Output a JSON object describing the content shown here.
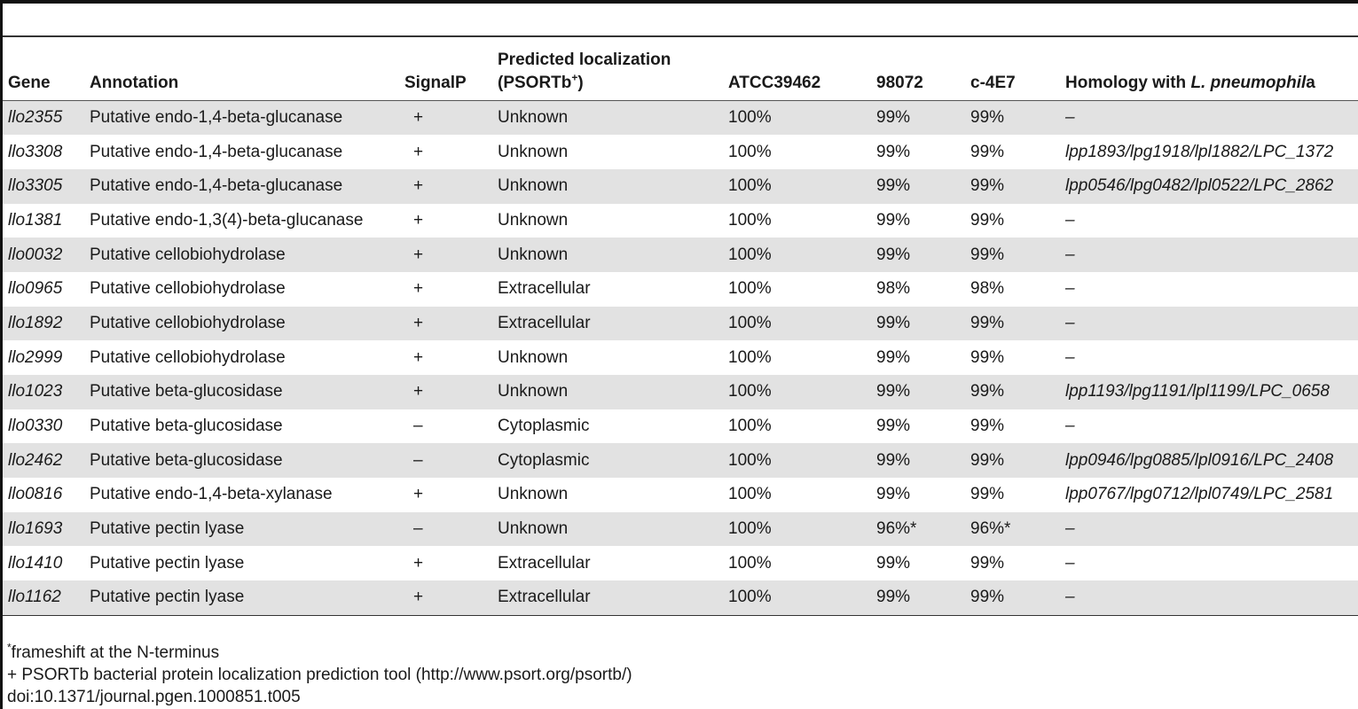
{
  "table": {
    "headers": {
      "gene": "Gene",
      "annotation": "Annotation",
      "signalp": "SignalP",
      "localization_line1": "Predicted localization",
      "localization_line2_pre": "(PSORTb",
      "localization_sup": "+",
      "localization_line2_post": ")",
      "atcc": "ATCC39462",
      "s98072": "98072",
      "c4e7": "c-4E7",
      "homology_pre": "Homology with ",
      "homology_italic": "L. pneumophil",
      "homology_post": "a"
    },
    "rows": [
      {
        "gene": "llo2355",
        "annotation": "Putative endo-1,4-beta-glucanase",
        "signalp": "+",
        "localization": "Unknown",
        "atcc": "100%",
        "s98072": "99%",
        "c4e7": "99%",
        "homology": "–"
      },
      {
        "gene": "llo3308",
        "annotation": "Putative endo-1,4-beta-glucanase",
        "signalp": "+",
        "localization": "Unknown",
        "atcc": "100%",
        "s98072": "99%",
        "c4e7": "99%",
        "homology": "lpp1893/lpg1918/lpl1882/LPC_1372"
      },
      {
        "gene": "llo3305",
        "annotation": "Putative endo-1,4-beta-glucanase",
        "signalp": "+",
        "localization": "Unknown",
        "atcc": "100%",
        "s98072": "99%",
        "c4e7": "99%",
        "homology": "lpp0546/lpg0482/lpl0522/LPC_2862"
      },
      {
        "gene": "llo1381",
        "annotation": "Putative endo-1,3(4)-beta-glucanase",
        "signalp": "+",
        "localization": "Unknown",
        "atcc": "100%",
        "s98072": "99%",
        "c4e7": "99%",
        "homology": "–"
      },
      {
        "gene": "llo0032",
        "annotation": "Putative cellobiohydrolase",
        "signalp": "+",
        "localization": "Unknown",
        "atcc": "100%",
        "s98072": "99%",
        "c4e7": "99%",
        "homology": "–"
      },
      {
        "gene": "llo0965",
        "annotation": "Putative cellobiohydrolase",
        "signalp": "+",
        "localization": "Extracellular",
        "atcc": "100%",
        "s98072": "98%",
        "c4e7": "98%",
        "homology": "–"
      },
      {
        "gene": "llo1892",
        "annotation": "Putative cellobiohydrolase",
        "signalp": "+",
        "localization": "Extracellular",
        "atcc": "100%",
        "s98072": "99%",
        "c4e7": "99%",
        "homology": "–"
      },
      {
        "gene": "llo2999",
        "annotation": "Putative cellobiohydrolase",
        "signalp": "+",
        "localization": "Unknown",
        "atcc": "100%",
        "s98072": "99%",
        "c4e7": "99%",
        "homology": "–"
      },
      {
        "gene": "llo1023",
        "annotation": "Putative beta-glucosidase",
        "signalp": "+",
        "localization": "Unknown",
        "atcc": "100%",
        "s98072": "99%",
        "c4e7": "99%",
        "homology": "lpp1193/lpg1191/lpl1199/LPC_0658"
      },
      {
        "gene": "llo0330",
        "annotation": "Putative beta-glucosidase",
        "signalp": "–",
        "localization": "Cytoplasmic",
        "atcc": "100%",
        "s98072": "99%",
        "c4e7": "99%",
        "homology": "–"
      },
      {
        "gene": "llo2462",
        "annotation": "Putative beta-glucosidase",
        "signalp": "–",
        "localization": "Cytoplasmic",
        "atcc": "100%",
        "s98072": "99%",
        "c4e7": "99%",
        "homology": "lpp0946/lpg0885/lpl0916/LPC_2408"
      },
      {
        "gene": "llo0816",
        "annotation": "Putative endo-1,4-beta-xylanase",
        "signalp": "+",
        "localization": "Unknown",
        "atcc": "100%",
        "s98072": "99%",
        "c4e7": "99%",
        "homology": "lpp0767/lpg0712/lpl0749/LPC_2581"
      },
      {
        "gene": "llo1693",
        "annotation": "Putative pectin lyase",
        "signalp": "–",
        "localization": "Unknown",
        "atcc": "100%",
        "s98072": "96%*",
        "c4e7": "96%*",
        "homology": "–"
      },
      {
        "gene": "llo1410",
        "annotation": "Putative pectin lyase",
        "signalp": "+",
        "localization": "Extracellular",
        "atcc": "100%",
        "s98072": "99%",
        "c4e7": "99%",
        "homology": "–"
      },
      {
        "gene": "llo1162",
        "annotation": "Putative pectin lyase",
        "signalp": "+",
        "localization": "Extracellular",
        "atcc": "100%",
        "s98072": "99%",
        "c4e7": "99%",
        "homology": "–"
      }
    ]
  },
  "footer": {
    "note1_sup": "*",
    "note1": "frameshift at the N-terminus",
    "note2": "+ PSORTb bacterial protein localization prediction tool (http://www.psort.org/psortb/)",
    "doi": "doi:10.1371/journal.pgen.1000851.t005"
  }
}
